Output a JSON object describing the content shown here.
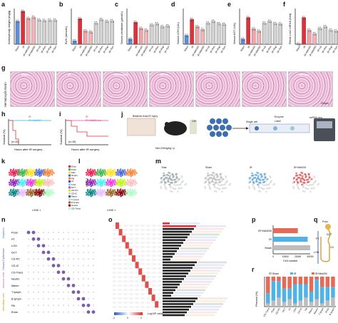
{
  "panels": {
    "a": "a",
    "b": "b",
    "c": "c",
    "d": "d",
    "e": "e",
    "f": "f",
    "g": "g",
    "h": "h",
    "i": "i",
    "j": "j",
    "k": "k",
    "l": "l",
    "m": "m",
    "n": "n",
    "o": "o",
    "p": "p",
    "q": "q",
    "r": "r"
  },
  "chart_data": [
    {
      "panel": "a",
      "type": "bar",
      "ylabel": "Kidney/body weight (mg/g)",
      "ylim": [
        0,
        10
      ],
      "categories": [
        "Sham",
        "IR",
        "IR+Met100",
        "IR+Met200",
        "IR+Va",
        "IR+Res",
        "IR+Rap",
        "IR+Sen"
      ],
      "values": [
        6.5,
        9.3,
        7.3,
        7.6,
        6.9,
        6.7,
        6.8,
        6.8
      ],
      "colors": [
        "#5b8fd8",
        "#e0303a",
        "#f0a3a8",
        "#f3b5b8",
        "#cfcfcf",
        "#cfcfcf",
        "#cfcfcf",
        "#cfcfcf"
      ]
    },
    {
      "panel": "b",
      "type": "bar",
      "ylabel": "BUN (mmol/L)",
      "ylim": [
        0,
        100
      ],
      "categories": [
        "Sham",
        "IR",
        "IR+Met100",
        "IR+Met200",
        "IR+Va",
        "IR+Res",
        "IR+Rap",
        "IR+Sen"
      ],
      "values": [
        10,
        72,
        38,
        35,
        60,
        70,
        65,
        66
      ]
    },
    {
      "panel": "c",
      "type": "bar",
      "ylabel": "Serum creatinine (μmol/L)",
      "ylim": [
        0,
        100
      ],
      "categories": [
        "Sham",
        "IR",
        "IR+Met100",
        "IR+Met200",
        "IR+Va",
        "IR+Res",
        "IR+Rap",
        "IR+Sen"
      ],
      "values": [
        15,
        62,
        45,
        40,
        55,
        58,
        50,
        52
      ]
    },
    {
      "panel": "d",
      "type": "bar",
      "ylabel": "Serum LDH (U/L)",
      "ylim": [
        0,
        6000
      ],
      "categories": [
        "Sham",
        "IR",
        "IR+Met100",
        "IR+Met200",
        "IR+Va",
        "IR+Res",
        "IR+Rap",
        "IR+Sen"
      ],
      "values": [
        1500,
        4200,
        3000,
        2500,
        3600,
        3900,
        3500,
        3400
      ]
    },
    {
      "panel": "e",
      "type": "bar",
      "ylabel": "Serum AST (U/L)",
      "ylim": [
        0,
        800
      ],
      "categories": [
        "Sham",
        "IR",
        "IR+Met100",
        "IR+Met200",
        "IR+Va",
        "IR+Res",
        "IR+Rap",
        "IR+Sen"
      ],
      "values": [
        120,
        600,
        350,
        300,
        480,
        520,
        470,
        460
      ]
    },
    {
      "panel": "f",
      "type": "bar",
      "ylabel": "Renal Lcn2 mRNA (fold)",
      "ylim": [
        0,
        400
      ],
      "categories": [
        "Sham",
        "IR",
        "IR+Met100",
        "IR+Met200",
        "IR+Va",
        "IR+Res",
        "IR+Rap",
        "IR+Sen"
      ],
      "values": [
        5,
        300,
        160,
        120,
        180,
        200,
        160,
        150
      ]
    },
    {
      "panel": "h",
      "type": "line",
      "xlabel": "Hours after IR surgery",
      "ylabel": "Survival (%)",
      "series": [
        {
          "name": "IR",
          "color": "#e0303a"
        },
        {
          "name": "IR+Met200",
          "color": "#35b6d8"
        }
      ],
      "note": "(n=10)"
    },
    {
      "panel": "i",
      "type": "line",
      "xlabel": "Hours after IR surgery",
      "ylabel": "Survival (%)",
      "series": [
        {
          "name": "IR",
          "color": "#e0303a"
        },
        {
          "name": "IR+Met50 o.a.",
          "color": "#e04aa0"
        }
      ],
      "note": "(n=15)"
    },
    {
      "panel": "p",
      "type": "bar",
      "xlabel": "Cell number",
      "categories": [
        "IR+Met200",
        "IR",
        "Sham"
      ],
      "values": [
        20000,
        28000,
        30000
      ],
      "xticks": [
        "0",
        "10000",
        "20000",
        "30000"
      ]
    },
    {
      "panel": "r",
      "type": "bar",
      "ylabel": "Percent (%)",
      "legend": [
        "Sham",
        "IR",
        "IR+Met200"
      ]
    }
  ],
  "g": {
    "titles": [
      "Sham",
      "IR",
      "IR+Met100",
      "IR+Va",
      "IR+Res",
      "IR+Rap",
      "IR+Sen"
    ],
    "side": "Hematoxylin Eosin",
    "scale": "200μm"
  },
  "j": {
    "steps": [
      "Bilateral renal IR injury",
      "13h",
      "Single cell",
      "Enzyme",
      "Label",
      "scRNA-seq"
    ],
    "dose": "Met 200mg/kg i.p."
  },
  "k": {
    "axis_x": "t-SNE 1",
    "axis_y": "t-SNE 2"
  },
  "l": {
    "axis_x": "t-SNE 1",
    "axis_y": "t-SNE 2",
    "legend": [
      "Endo",
      "Podo",
      "Mac",
      "Neutro",
      "Fib",
      "PT",
      "LOH",
      "DCT",
      "CD-PC",
      "CD-IC",
      "Macro",
      "T lymph",
      "B lymph",
      "Granul",
      "CD-Trans"
    ]
  },
  "m": {
    "titles": [
      "Total",
      "Sham",
      "IR",
      "IR+Met200"
    ]
  },
  "n": {
    "groups": [
      "Nephron",
      "Urinary Epithelium",
      "Immune cells",
      "Interstitial cells"
    ],
    "rows": [
      "Podo",
      "PT",
      "LOH",
      "DCT",
      "CD-PC",
      "CD-IC",
      "CD-Trans",
      "Neutro",
      "Macro",
      "T lymph",
      "B lymph",
      "Fib",
      "Endo"
    ]
  },
  "q": {
    "labels": [
      "Podo",
      "PT",
      "DCT",
      "LOH",
      "CD"
    ]
  },
  "r": {
    "categories": [
      "CD-Trans",
      "Podo",
      "CD-PC",
      "DCT",
      "PT",
      "LOH",
      "CD-IC",
      "Fib",
      "Macro",
      "Neutro",
      "T lymph",
      "Endo",
      "B lymph"
    ]
  },
  "o": {
    "scale": "-Log10P value",
    "ticks": [
      "-2",
      "0",
      "2"
    ]
  }
}
